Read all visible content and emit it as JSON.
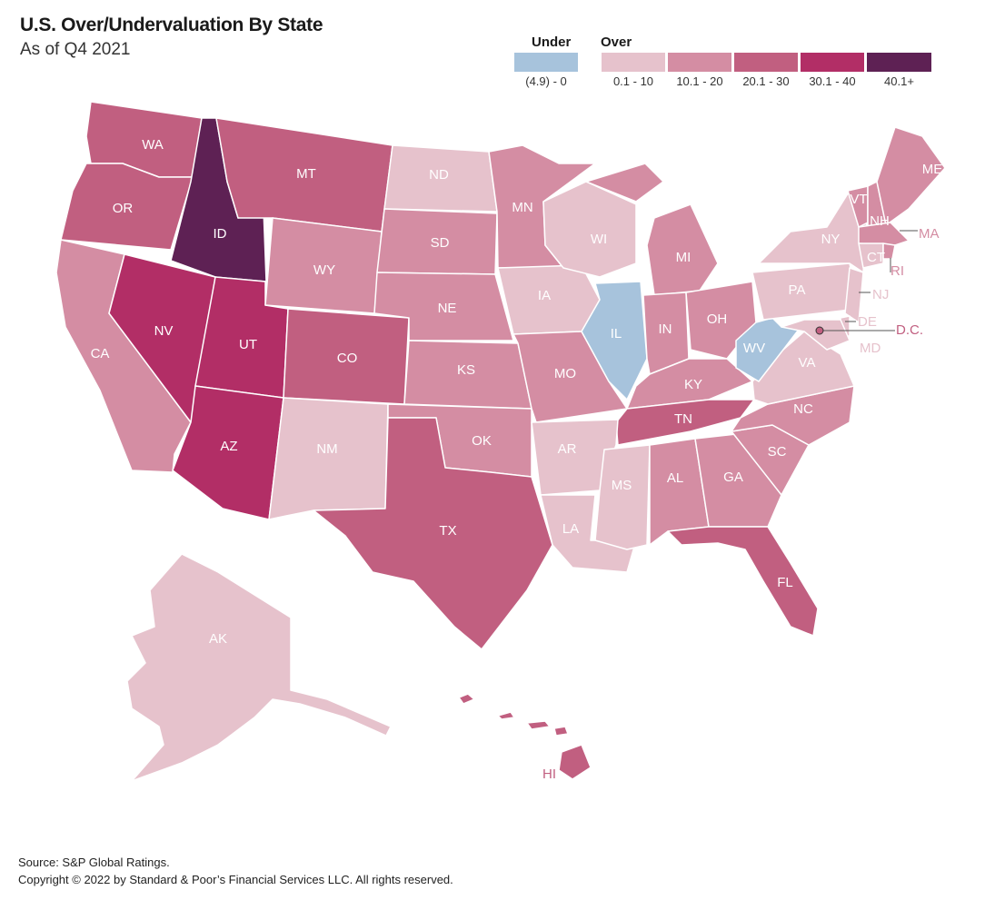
{
  "header": {
    "title": "U.S. Over/Undervaluation By State",
    "subtitle": "As of Q4 2021"
  },
  "legend": {
    "under_heading": "Under",
    "over_heading": "Over",
    "bins": [
      {
        "label": "(4.9) - 0",
        "color": "#a7c3dc"
      },
      {
        "label": "0.1 - 10",
        "color": "#e6c2cc"
      },
      {
        "label": "10.1 - 20",
        "color": "#d48da3"
      },
      {
        "label": "20.1 - 30",
        "color": "#c15f80"
      },
      {
        "label": "30.1 - 40",
        "color": "#b22e66"
      },
      {
        "label": "40.1+",
        "color": "#5e2154"
      }
    ]
  },
  "states": {
    "WA": {
      "label": "WA",
      "bin": 3
    },
    "OR": {
      "label": "OR",
      "bin": 3
    },
    "CA": {
      "label": "CA",
      "bin": 2
    },
    "ID": {
      "label": "ID",
      "bin": 5
    },
    "NV": {
      "label": "NV",
      "bin": 4
    },
    "UT": {
      "label": "UT",
      "bin": 4
    },
    "AZ": {
      "label": "AZ",
      "bin": 4
    },
    "MT": {
      "label": "MT",
      "bin": 3
    },
    "WY": {
      "label": "WY",
      "bin": 2
    },
    "CO": {
      "label": "CO",
      "bin": 3
    },
    "NM": {
      "label": "NM",
      "bin": 1
    },
    "ND": {
      "label": "ND",
      "bin": 1
    },
    "SD": {
      "label": "SD",
      "bin": 2
    },
    "NE": {
      "label": "NE",
      "bin": 2
    },
    "KS": {
      "label": "KS",
      "bin": 2
    },
    "OK": {
      "label": "OK",
      "bin": 2
    },
    "TX": {
      "label": "TX",
      "bin": 3
    },
    "MN": {
      "label": "MN",
      "bin": 2
    },
    "IA": {
      "label": "IA",
      "bin": 1
    },
    "MO": {
      "label": "MO",
      "bin": 2
    },
    "AR": {
      "label": "AR",
      "bin": 1
    },
    "LA": {
      "label": "LA",
      "bin": 1
    },
    "WI": {
      "label": "WI",
      "bin": 1
    },
    "IL": {
      "label": "IL",
      "bin": 0
    },
    "MI": {
      "label": "MI",
      "bin": 2
    },
    "IN": {
      "label": "IN",
      "bin": 2
    },
    "OH": {
      "label": "OH",
      "bin": 2
    },
    "KY": {
      "label": "KY",
      "bin": 2
    },
    "TN": {
      "label": "TN",
      "bin": 3
    },
    "MS": {
      "label": "MS",
      "bin": 1
    },
    "AL": {
      "label": "AL",
      "bin": 2
    },
    "GA": {
      "label": "GA",
      "bin": 2
    },
    "FL": {
      "label": "FL",
      "bin": 3
    },
    "SC": {
      "label": "SC",
      "bin": 2
    },
    "NC": {
      "label": "NC",
      "bin": 2
    },
    "VA": {
      "label": "VA",
      "bin": 1
    },
    "WV": {
      "label": "WV",
      "bin": 0
    },
    "PA": {
      "label": "PA",
      "bin": 1
    },
    "NY": {
      "label": "NY",
      "bin": 1
    },
    "VT": {
      "label": "VT",
      "bin": 2
    },
    "NH": {
      "label": "NH",
      "bin": 2
    },
    "ME": {
      "label": "ME",
      "bin": 2
    },
    "MA": {
      "label": "MA",
      "bin": 2
    },
    "RI": {
      "label": "RI",
      "bin": 2
    },
    "CT": {
      "label": "CT",
      "bin": 1
    },
    "NJ": {
      "label": "NJ",
      "bin": 1
    },
    "DE": {
      "label": "DE",
      "bin": 1
    },
    "MD": {
      "label": "MD",
      "bin": 1
    },
    "DC": {
      "label": "D.C.",
      "bin": 3
    },
    "AK": {
      "label": "AK",
      "bin": 1
    },
    "HI": {
      "label": "HI",
      "bin": 3
    }
  },
  "footer": {
    "source": "Source: S&P Global Ratings.",
    "copyright": "Copyright © 2022 by Standard & Poor’s Financial Services LLC. All rights reserved."
  }
}
